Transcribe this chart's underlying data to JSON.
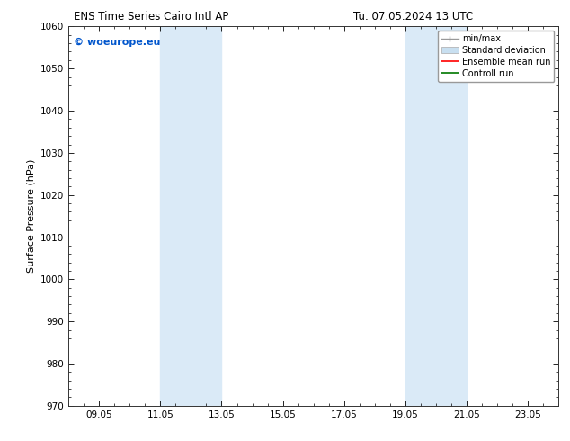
{
  "title_left": "ENS Time Series Cairo Intl AP",
  "title_right": "Tu. 07.05.2024 13 UTC",
  "ylabel": "Surface Pressure (hPa)",
  "ylim": [
    970,
    1060
  ],
  "yticks": [
    970,
    980,
    990,
    1000,
    1010,
    1020,
    1030,
    1040,
    1050,
    1060
  ],
  "xtick_labels": [
    "09.05",
    "11.05",
    "13.05",
    "15.05",
    "17.05",
    "19.05",
    "21.05",
    "23.05"
  ],
  "xtick_positions": [
    1,
    3,
    5,
    7,
    9,
    11,
    13,
    15
  ],
  "xlim": [
    0,
    16
  ],
  "background_color": "#ffffff",
  "plot_bg_color": "#ffffff",
  "shaded_bands": [
    {
      "x_start": 3.0,
      "x_end": 5.0,
      "color": "#daeaf7"
    },
    {
      "x_start": 11.0,
      "x_end": 13.0,
      "color": "#daeaf7"
    }
  ],
  "watermark_text": "© woeurope.eu",
  "watermark_color": "#0055cc",
  "title_fontsize": 8.5,
  "axis_label_fontsize": 8,
  "tick_fontsize": 7.5,
  "watermark_fontsize": 8,
  "legend_fontsize": 7
}
